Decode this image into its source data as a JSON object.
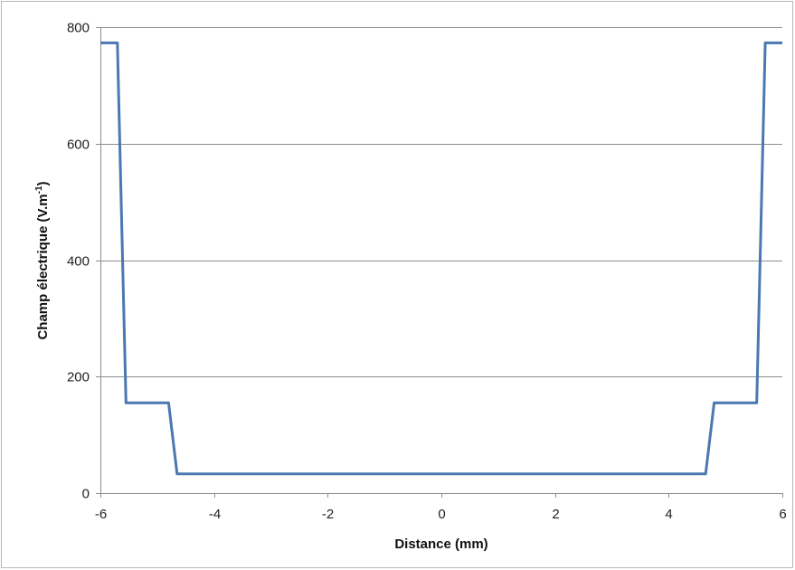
{
  "chart_data": {
    "type": "line",
    "title": "",
    "xlabel": "Distance (mm)",
    "ylabel_main": "Champ électrique  (V.m",
    "ylabel_sup": "-1",
    "ylabel_close": ")",
    "xlim": [
      -6,
      6
    ],
    "ylim": [
      0,
      800
    ],
    "xticks": [
      -6,
      -4,
      -2,
      0,
      2,
      4,
      6
    ],
    "yticks": [
      0,
      200,
      400,
      600,
      800
    ],
    "grid": "horizontal",
    "legend": "none",
    "series": [
      {
        "color": "#4a78b0",
        "x": [
          -6,
          -5.7,
          -5.55,
          -4.8,
          -4.65,
          4.65,
          4.8,
          5.55,
          5.7,
          6
        ],
        "y": [
          773,
          773,
          155,
          155,
          33,
          33,
          155,
          155,
          773,
          773
        ]
      }
    ]
  }
}
